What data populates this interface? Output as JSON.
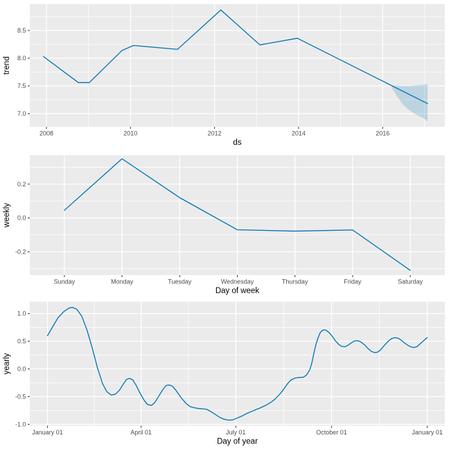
{
  "colors": {
    "line": "#0072B2",
    "band_fill": "#0072B2",
    "band_opacity": 0.2,
    "panel_bg": "#EBEBEB",
    "grid": "#FFFFFF",
    "tick_mark": "#333333",
    "tick_text": "#4D4D4D",
    "title_text": "#000000"
  },
  "chart_data": [
    {
      "id": "trend",
      "type": "line",
      "xlabel": "ds",
      "ylabel": "trend",
      "x_domain": [
        2007.604,
        2017.48
      ],
      "y_domain": [
        6.7625,
        8.975
      ],
      "x_ticks": {
        "major": [
          {
            "v": 2008,
            "label": "2008"
          },
          {
            "v": 2010,
            "label": "2010"
          },
          {
            "v": 2012,
            "label": "2012"
          },
          {
            "v": 2014,
            "label": "2014"
          },
          {
            "v": 2016,
            "label": "2016"
          }
        ],
        "minor": [
          2009,
          2011,
          2013,
          2015,
          2017
        ]
      },
      "y_ticks": {
        "major": [
          {
            "v": 7.0,
            "label": "7.0"
          },
          {
            "v": 7.5,
            "label": "7.5"
          },
          {
            "v": 8.0,
            "label": "8.0"
          },
          {
            "v": 8.5,
            "label": "8.5"
          }
        ],
        "minor": [
          7.25,
          7.75,
          8.25,
          8.75
        ]
      },
      "series": [
        [
          2007.93,
          8.03
        ],
        [
          2008.76,
          7.56
        ],
        [
          2009.02,
          7.56
        ],
        [
          2009.8,
          8.14
        ],
        [
          2010.07,
          8.23
        ],
        [
          2011.12,
          8.16
        ],
        [
          2012.15,
          8.87
        ],
        [
          2013.08,
          8.24
        ],
        [
          2013.97,
          8.36
        ],
        [
          2017.07,
          7.18
        ]
      ],
      "band": {
        "x": [
          2016.19,
          2016.33,
          2016.47,
          2016.64,
          2016.8,
          2016.95,
          2017.07
        ],
        "upper": [
          7.51,
          7.51,
          7.5,
          7.5,
          7.51,
          7.52,
          7.53
        ],
        "lower": [
          7.51,
          7.33,
          7.17,
          7.06,
          6.98,
          6.93,
          6.86
        ]
      }
    },
    {
      "id": "weekly",
      "type": "line",
      "xlabel": "Day of week",
      "ylabel": "weekly",
      "categories": [
        "Sunday",
        "Monday",
        "Tuesday",
        "Wednesday",
        "Thursday",
        "Friday",
        "Saturday"
      ],
      "y_domain": [
        -0.338,
        0.371
      ],
      "y_ticks": {
        "major": [
          {
            "v": -0.2,
            "label": "-0.2"
          },
          {
            "v": 0.0,
            "label": "0.0"
          },
          {
            "v": 0.2,
            "label": "0.2"
          }
        ],
        "minor": [
          -0.3,
          -0.1,
          0.1,
          0.3
        ]
      },
      "series": [
        [
          0,
          0.045
        ],
        [
          1,
          0.35
        ],
        [
          2,
          0.12
        ],
        [
          3,
          -0.07
        ],
        [
          4,
          -0.078
        ],
        [
          5,
          -0.071
        ],
        [
          6,
          -0.31
        ]
      ]
    },
    {
      "id": "yearly",
      "type": "line",
      "xlabel": "Day of year",
      "ylabel": "yearly",
      "x_domain": [
        -17,
        381.9
      ],
      "y_domain": [
        -1.027,
        1.212
      ],
      "x_ticks": {
        "major": [
          {
            "v": 0,
            "label": "January 01"
          },
          {
            "v": 90,
            "label": "April 01"
          },
          {
            "v": 181,
            "label": "July 01"
          },
          {
            "v": 273,
            "label": "October 01"
          },
          {
            "v": 365,
            "label": "January 01"
          }
        ],
        "minor": [
          45,
          135.5,
          227,
          319
        ]
      },
      "y_ticks": {
        "major": [
          {
            "v": -1.0,
            "label": "-1.0"
          },
          {
            "v": -0.5,
            "label": "-0.5"
          },
          {
            "v": 0.0,
            "label": "0.0"
          },
          {
            "v": 0.5,
            "label": "0.5"
          },
          {
            "v": 1.0,
            "label": "1.0"
          }
        ],
        "minor": [
          -0.75,
          -0.25,
          0.25,
          0.75
        ]
      },
      "series": [
        [
          0,
          0.6
        ],
        [
          5,
          0.76
        ],
        [
          10,
          0.92
        ],
        [
          16,
          1.04
        ],
        [
          21,
          1.1
        ],
        [
          24,
          1.11
        ],
        [
          28,
          1.08
        ],
        [
          33,
          0.95
        ],
        [
          38,
          0.7
        ],
        [
          43,
          0.38
        ],
        [
          48,
          0.02
        ],
        [
          53,
          -0.27
        ],
        [
          57,
          -0.41
        ],
        [
          61,
          -0.47
        ],
        [
          65,
          -0.46
        ],
        [
          69,
          -0.39
        ],
        [
          73,
          -0.27
        ],
        [
          76,
          -0.19
        ],
        [
          79,
          -0.17
        ],
        [
          82,
          -0.2
        ],
        [
          85,
          -0.29
        ],
        [
          89,
          -0.44
        ],
        [
          93,
          -0.57
        ],
        [
          96,
          -0.64
        ],
        [
          100,
          -0.66
        ],
        [
          103,
          -0.61
        ],
        [
          107,
          -0.49
        ],
        [
          111,
          -0.37
        ],
        [
          114,
          -0.3
        ],
        [
          117,
          -0.29
        ],
        [
          120,
          -0.31
        ],
        [
          124,
          -0.4
        ],
        [
          128,
          -0.51
        ],
        [
          133,
          -0.62
        ],
        [
          137,
          -0.68
        ],
        [
          141,
          -0.7
        ],
        [
          145,
          -0.715
        ],
        [
          149,
          -0.72
        ],
        [
          153,
          -0.73
        ],
        [
          157,
          -0.77
        ],
        [
          162,
          -0.83
        ],
        [
          166,
          -0.88
        ],
        [
          170,
          -0.91
        ],
        [
          174,
          -0.925
        ],
        [
          178,
          -0.92
        ],
        [
          182,
          -0.89
        ],
        [
          187,
          -0.85
        ],
        [
          191,
          -0.81
        ],
        [
          196,
          -0.77
        ],
        [
          201,
          -0.73
        ],
        [
          205,
          -0.7
        ],
        [
          210,
          -0.655
        ],
        [
          215,
          -0.6
        ],
        [
          219,
          -0.54
        ],
        [
          224,
          -0.44
        ],
        [
          228,
          -0.34
        ],
        [
          231,
          -0.26
        ],
        [
          234,
          -0.2
        ],
        [
          238,
          -0.165
        ],
        [
          242,
          -0.155
        ],
        [
          246,
          -0.15
        ],
        [
          249,
          -0.11
        ],
        [
          252,
          -0.02
        ],
        [
          254,
          0.1
        ],
        [
          256,
          0.28
        ],
        [
          258,
          0.44
        ],
        [
          260,
          0.56
        ],
        [
          262,
          0.65
        ],
        [
          264,
          0.695
        ],
        [
          266,
          0.705
        ],
        [
          268,
          0.695
        ],
        [
          271,
          0.65
        ],
        [
          274,
          0.58
        ],
        [
          277,
          0.5
        ],
        [
          280,
          0.44
        ],
        [
          283,
          0.405
        ],
        [
          286,
          0.4
        ],
        [
          289,
          0.43
        ],
        [
          292,
          0.47
        ],
        [
          295,
          0.505
        ],
        [
          298,
          0.51
        ],
        [
          301,
          0.49
        ],
        [
          305,
          0.43
        ],
        [
          308,
          0.37
        ],
        [
          311,
          0.32
        ],
        [
          314,
          0.295
        ],
        [
          317,
          0.3
        ],
        [
          320,
          0.34
        ],
        [
          324,
          0.43
        ],
        [
          328,
          0.51
        ],
        [
          331,
          0.55
        ],
        [
          334,
          0.565
        ],
        [
          337,
          0.555
        ],
        [
          340,
          0.52
        ],
        [
          343,
          0.47
        ],
        [
          346,
          0.43
        ],
        [
          349,
          0.4
        ],
        [
          352,
          0.385
        ],
        [
          355,
          0.4
        ],
        [
          358,
          0.45
        ],
        [
          361,
          0.5
        ],
        [
          364,
          0.55
        ],
        [
          365,
          0.565
        ]
      ]
    }
  ]
}
